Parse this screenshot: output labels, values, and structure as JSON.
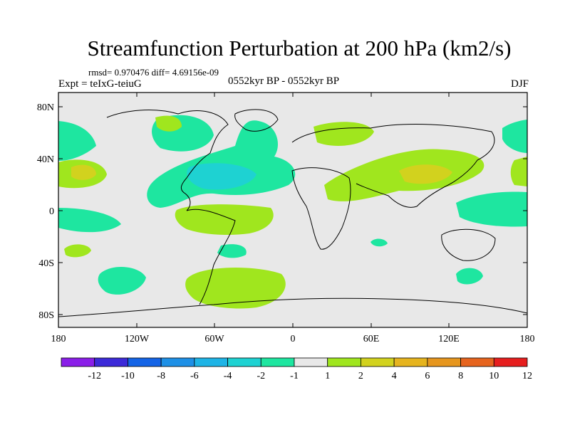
{
  "title": "Streamfunction Perturbation at 200 hPa (km2/s)",
  "stats": "rmsd= 0.970476 diff= 4.69156e-09",
  "experiment": "Expt = teIxG-teiuG",
  "period": "0552kyr BP - 0552kyr BP",
  "season": "DJF",
  "map": {
    "lat_ticks": [
      "80N",
      "40N",
      "0",
      "40S",
      "80S"
    ],
    "lon_ticks": [
      "180",
      "120W",
      "60W",
      "0",
      "60E",
      "120E",
      "180"
    ],
    "background_color": "#e8e8e8"
  },
  "colorbar": {
    "labels": [
      "-12",
      "-10",
      "-8",
      "-6",
      "-4",
      "-2",
      "-1",
      "1",
      "2",
      "4",
      "6",
      "8",
      "10",
      "12"
    ],
    "colors": [
      "#8a1ee8",
      "#3c2ad8",
      "#1464e6",
      "#1e90e6",
      "#1eb4e6",
      "#1ed2d2",
      "#1ee6a0",
      "#e8e8e8",
      "#a0e61e",
      "#d2d21e",
      "#e6b41e",
      "#e6961e",
      "#e6641e",
      "#e61e1e"
    ]
  }
}
